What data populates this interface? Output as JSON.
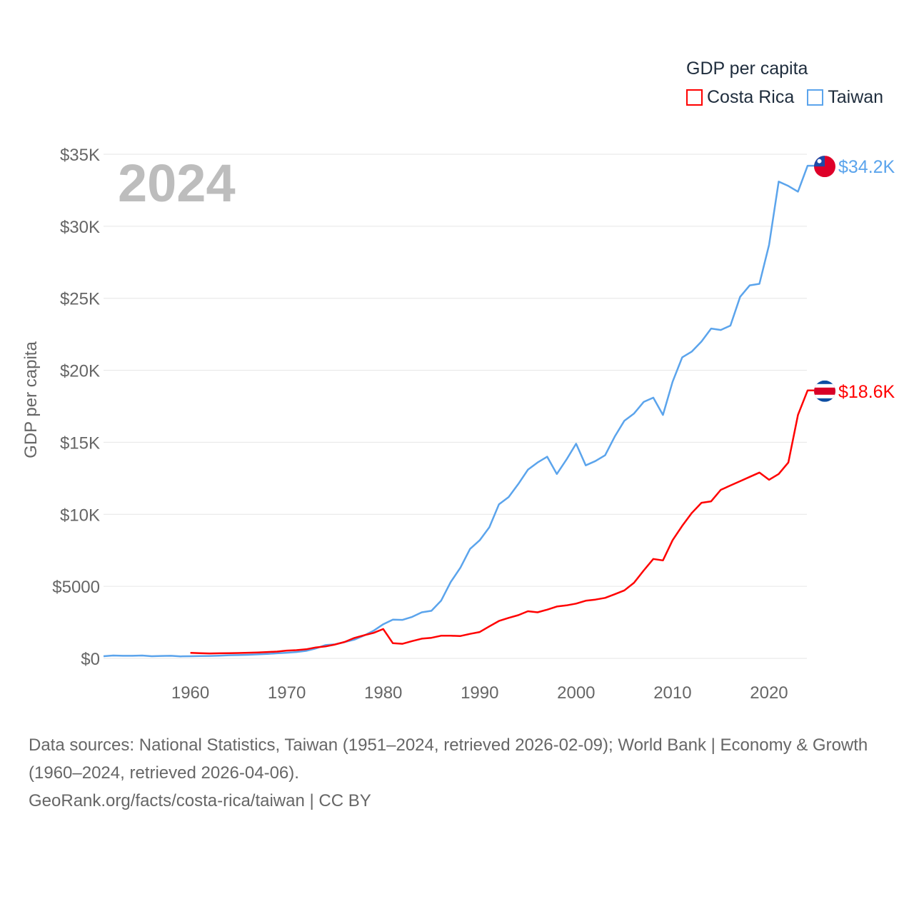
{
  "legend": {
    "title": "GDP per capita",
    "items": [
      {
        "name": "Costa Rica",
        "color": "#ff0000"
      },
      {
        "name": "Taiwan",
        "color": "#5ba4ec"
      }
    ]
  },
  "year_watermark": "2024",
  "footer": {
    "sources": "Data sources: National Statistics, Taiwan (1951–2024, retrieved 2026-02-09); World Bank | Economy & Growth (1960–2024, retrieved 2026-04-06).",
    "credit": "GeoRank.org/facts/costa-rica/taiwan | CC BY"
  },
  "chart_data": {
    "type": "line",
    "title": "GDP per capita",
    "ylabel": "GDP per capita",
    "xlabel": "",
    "xlim": [
      1951,
      2024
    ],
    "ylim": [
      0,
      35000
    ],
    "grid": true,
    "legend_position": "top-right",
    "x_ticks": [
      1960,
      1970,
      1980,
      1990,
      2000,
      2010,
      2020
    ],
    "y_ticks": [
      0,
      5000,
      10000,
      15000,
      20000,
      25000,
      30000,
      35000
    ],
    "y_tick_labels": [
      "$0",
      "$5000",
      "$10K",
      "$15K",
      "$20K",
      "$25K",
      "$30K",
      "$35K"
    ],
    "series": [
      {
        "name": "Taiwan",
        "color": "#5ba4ec",
        "end_label": "$34.2K",
        "start_year": 1951,
        "values_thousands": [
          0.15,
          0.2,
          0.18,
          0.18,
          0.2,
          0.15,
          0.17,
          0.18,
          0.14,
          0.15,
          0.16,
          0.17,
          0.19,
          0.22,
          0.23,
          0.25,
          0.28,
          0.31,
          0.35,
          0.39,
          0.44,
          0.52,
          0.69,
          0.92,
          0.97,
          1.13,
          1.3,
          1.58,
          1.92,
          2.37,
          2.69,
          2.67,
          2.88,
          3.2,
          3.3,
          4.0,
          5.3,
          6.3,
          7.6,
          8.2,
          9.1,
          10.7,
          11.2,
          12.1,
          13.1,
          13.6,
          14.0,
          12.8,
          13.8,
          14.9,
          13.4,
          13.7,
          14.1,
          15.4,
          16.5,
          17.0,
          17.8,
          18.1,
          16.9,
          19.2,
          20.9,
          21.3,
          22.0,
          22.9,
          22.8,
          23.1,
          25.1,
          25.9,
          26.0,
          28.7,
          33.1,
          32.8,
          32.4,
          34.2
        ]
      },
      {
        "name": "Costa Rica",
        "color": "#ff0000",
        "end_label": "$18.6K",
        "start_year": 1960,
        "values_thousands": [
          0.38,
          0.36,
          0.34,
          0.35,
          0.36,
          0.37,
          0.39,
          0.41,
          0.44,
          0.47,
          0.54,
          0.57,
          0.63,
          0.76,
          0.83,
          0.96,
          1.14,
          1.42,
          1.6,
          1.77,
          2.04,
          1.05,
          1.01,
          1.2,
          1.37,
          1.43,
          1.57,
          1.57,
          1.55,
          1.7,
          1.83,
          2.22,
          2.6,
          2.81,
          3.0,
          3.27,
          3.2,
          3.38,
          3.6,
          3.68,
          3.8,
          4.0,
          4.08,
          4.2,
          4.45,
          4.72,
          5.25,
          6.1,
          6.9,
          6.8,
          8.2,
          9.2,
          10.1,
          10.8,
          10.9,
          11.7,
          12.0,
          12.3,
          12.6,
          12.9,
          12.4,
          12.8,
          13.6,
          16.9,
          18.6
        ]
      }
    ]
  }
}
